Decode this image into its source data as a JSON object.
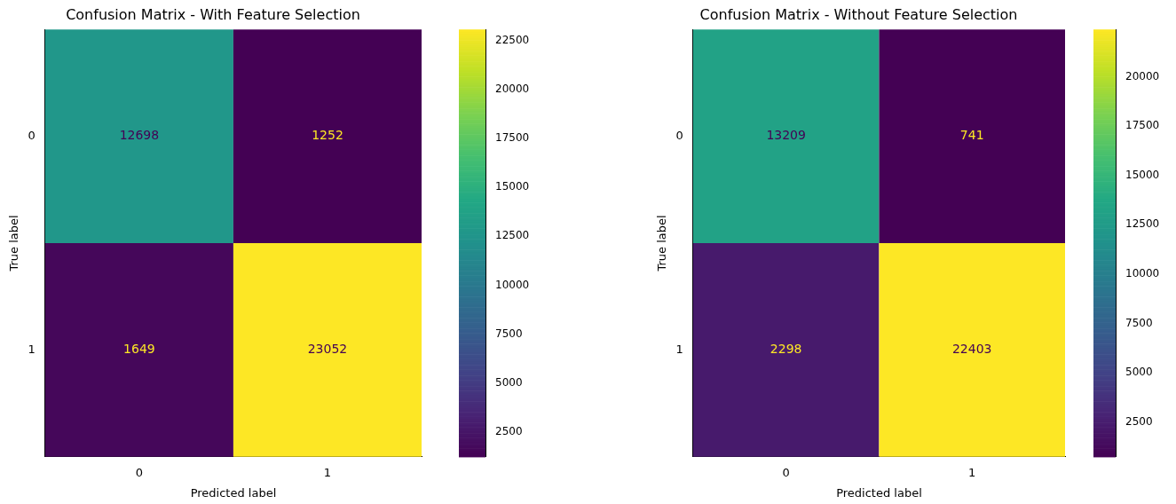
{
  "chart_data": [
    {
      "type": "heatmap",
      "title": "Confusion Matrix - With Feature Selection",
      "xlabel": "Predicted label",
      "ylabel": "True label",
      "categories": [
        "0",
        "1"
      ],
      "y_categories": [
        "0",
        "1"
      ],
      "cells": [
        [
          12698,
          1252
        ],
        [
          1649,
          23052
        ]
      ],
      "data_labels": true,
      "clim": [
        1252,
        23052
      ],
      "cticks": [
        2500,
        5000,
        7500,
        10000,
        12500,
        15000,
        17500,
        20000,
        22500
      ]
    },
    {
      "type": "heatmap",
      "title": "Confusion Matrix - Without Feature Selection",
      "xlabel": "Predicted label",
      "ylabel": "True label",
      "categories": [
        "0",
        "1"
      ],
      "y_categories": [
        "0",
        "1"
      ],
      "cells": [
        [
          13209,
          741
        ],
        [
          2298,
          22403
        ]
      ],
      "data_labels": true,
      "clim": [
        741,
        22403
      ],
      "cticks": [
        2500,
        5000,
        7500,
        10000,
        12500,
        15000,
        17500,
        20000
      ]
    }
  ]
}
